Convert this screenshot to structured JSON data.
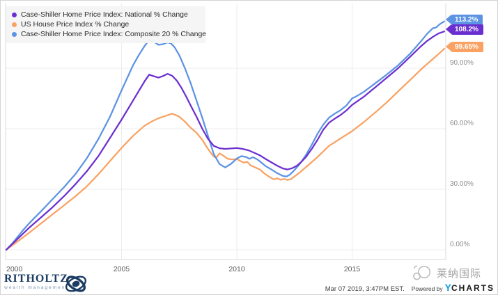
{
  "chart_data": {
    "type": "line",
    "title": "",
    "legend_position": "top-left",
    "grid": true,
    "x_axis": {
      "ticks": [
        "2000",
        "2005",
        "2010",
        "2015"
      ],
      "tick_values": [
        2000,
        2005,
        2010,
        2015
      ],
      "range": [
        2000,
        2019.1
      ]
    },
    "y_axis": {
      "side": "right",
      "ticks": [
        "0.00%",
        "30.00%",
        "60.00%",
        "90.00%"
      ],
      "tick_values": [
        0,
        30,
        60,
        90
      ],
      "range": [
        -4.8,
        122
      ]
    },
    "series": [
      {
        "name": "national",
        "label": "Case-Shiller Home Price Index: National % Change",
        "color": "#6B2FD0",
        "end_label": "108.2%",
        "points": [
          [
            2000,
            0
          ],
          [
            2000.5,
            5.5
          ],
          [
            2001,
            11
          ],
          [
            2001.5,
            16
          ],
          [
            2002,
            21
          ],
          [
            2002.5,
            26.5
          ],
          [
            2003,
            32.5
          ],
          [
            2003.5,
            39
          ],
          [
            2004,
            46.5
          ],
          [
            2004.5,
            55.5
          ],
          [
            2005,
            64.5
          ],
          [
            2005.5,
            74
          ],
          [
            2006,
            83.5
          ],
          [
            2006.2,
            86.8
          ],
          [
            2006.4,
            86
          ],
          [
            2006.6,
            85.3
          ],
          [
            2006.8,
            86.1
          ],
          [
            2007,
            87.2
          ],
          [
            2007.2,
            86.2
          ],
          [
            2007.4,
            83.8
          ],
          [
            2007.6,
            80.2
          ],
          [
            2007.8,
            76
          ],
          [
            2008,
            71.5
          ],
          [
            2008.25,
            66
          ],
          [
            2008.5,
            60
          ],
          [
            2008.75,
            55
          ],
          [
            2009,
            51.5
          ],
          [
            2009.25,
            50.3
          ],
          [
            2009.5,
            50
          ],
          [
            2009.75,
            50.2
          ],
          [
            2010,
            50.4
          ],
          [
            2010.25,
            50
          ],
          [
            2010.5,
            49.3
          ],
          [
            2010.75,
            48.1
          ],
          [
            2011,
            46.8
          ],
          [
            2011.25,
            45
          ],
          [
            2011.5,
            43.3
          ],
          [
            2011.75,
            41.7
          ],
          [
            2012,
            40.3
          ],
          [
            2012.2,
            39.8
          ],
          [
            2012.4,
            40.4
          ],
          [
            2012.6,
            41.6
          ],
          [
            2012.8,
            43.6
          ],
          [
            2013,
            46
          ],
          [
            2013.25,
            50
          ],
          [
            2013.5,
            54.5
          ],
          [
            2013.75,
            59.5
          ],
          [
            2014,
            63
          ],
          [
            2014.25,
            65
          ],
          [
            2014.5,
            66.8
          ],
          [
            2014.75,
            69
          ],
          [
            2015,
            71.8
          ],
          [
            2015.5,
            75.8
          ],
          [
            2016,
            80.5
          ],
          [
            2016.5,
            85.2
          ],
          [
            2017,
            90
          ],
          [
            2017.5,
            95.5
          ],
          [
            2018,
            101
          ],
          [
            2018.25,
            103.5
          ],
          [
            2018.5,
            105.5
          ],
          [
            2018.75,
            107.2
          ],
          [
            2019,
            108.2
          ]
        ]
      },
      {
        "name": "us-house-price-index",
        "label": "US House Price Index % Change",
        "color": "#F9A263",
        "end_label": "99.65%",
        "points": [
          [
            2000,
            0
          ],
          [
            2000.5,
            4.2
          ],
          [
            2001,
            8.5
          ],
          [
            2001.5,
            13
          ],
          [
            2002,
            17.5
          ],
          [
            2002.5,
            22
          ],
          [
            2003,
            26.5
          ],
          [
            2003.5,
            31.5
          ],
          [
            2004,
            37.5
          ],
          [
            2004.5,
            44
          ],
          [
            2005,
            50.5
          ],
          [
            2005.5,
            56.5
          ],
          [
            2006,
            61.5
          ],
          [
            2006.3,
            63.5
          ],
          [
            2006.6,
            65.2
          ],
          [
            2006.9,
            66.3
          ],
          [
            2007.2,
            67.5
          ],
          [
            2007.5,
            66
          ],
          [
            2007.75,
            63.5
          ],
          [
            2008,
            60.5
          ],
          [
            2008.25,
            58
          ],
          [
            2008.5,
            54.5
          ],
          [
            2008.75,
            50
          ],
          [
            2008.9,
            47.6
          ],
          [
            2009,
            46.2
          ],
          [
            2009.1,
            45.6
          ],
          [
            2009.25,
            47.8
          ],
          [
            2009.4,
            46.8
          ],
          [
            2009.6,
            45.1
          ],
          [
            2009.8,
            44.8
          ],
          [
            2010,
            45
          ],
          [
            2010.15,
            44
          ],
          [
            2010.3,
            43.2
          ],
          [
            2010.45,
            43.6
          ],
          [
            2010.6,
            41.8
          ],
          [
            2010.8,
            40.8
          ],
          [
            2011,
            39.8
          ],
          [
            2011.2,
            37.8
          ],
          [
            2011.4,
            36.2
          ],
          [
            2011.6,
            34.9
          ],
          [
            2011.75,
            35.4
          ],
          [
            2011.9,
            34.7
          ],
          [
            2012.05,
            35.1
          ],
          [
            2012.2,
            34.6
          ],
          [
            2012.35,
            35
          ],
          [
            2012.5,
            36.3
          ],
          [
            2012.75,
            38.5
          ],
          [
            2013,
            41
          ],
          [
            2013.5,
            46
          ],
          [
            2014,
            51.5
          ],
          [
            2014.5,
            55.2
          ],
          [
            2015,
            58.8
          ],
          [
            2015.5,
            63.2
          ],
          [
            2016,
            68
          ],
          [
            2016.5,
            73
          ],
          [
            2017,
            78.5
          ],
          [
            2017.5,
            84
          ],
          [
            2018,
            89.5
          ],
          [
            2018.5,
            94.5
          ],
          [
            2018.75,
            97
          ],
          [
            2019,
            99.65
          ]
        ]
      },
      {
        "name": "composite-20",
        "label": "Case-Shiller Home Price Index: Composite 20 % Change",
        "color": "#5C93E3",
        "end_label": "113.2%",
        "points": [
          [
            2000,
            0
          ],
          [
            2000.25,
            3
          ],
          [
            2000.5,
            6.5
          ],
          [
            2000.75,
            10
          ],
          [
            2001,
            13.2
          ],
          [
            2001.5,
            19
          ],
          [
            2002,
            25
          ],
          [
            2002.5,
            31
          ],
          [
            2003,
            37.5
          ],
          [
            2003.5,
            45.5
          ],
          [
            2004,
            55
          ],
          [
            2004.5,
            66
          ],
          [
            2005,
            79
          ],
          [
            2005.5,
            91.5
          ],
          [
            2005.75,
            96.5
          ],
          [
            2006,
            101
          ],
          [
            2006.2,
            104
          ],
          [
            2006.4,
            103.2
          ],
          [
            2006.6,
            101.6
          ],
          [
            2006.8,
            101.9
          ],
          [
            2007,
            102.8
          ],
          [
            2007.15,
            102.2
          ],
          [
            2007.3,
            100.4
          ],
          [
            2007.5,
            96.5
          ],
          [
            2007.75,
            90
          ],
          [
            2008,
            82.5
          ],
          [
            2008.25,
            74
          ],
          [
            2008.5,
            65.5
          ],
          [
            2008.75,
            56.5
          ],
          [
            2009,
            47.5
          ],
          [
            2009.25,
            42.5
          ],
          [
            2009.5,
            40.8
          ],
          [
            2009.75,
            42.6
          ],
          [
            2010,
            45.2
          ],
          [
            2010.2,
            46.4
          ],
          [
            2010.4,
            46
          ],
          [
            2010.55,
            45.1
          ],
          [
            2010.7,
            45.9
          ],
          [
            2010.9,
            44.7
          ],
          [
            2011,
            43.8
          ],
          [
            2011.25,
            41.5
          ],
          [
            2011.5,
            39.8
          ],
          [
            2011.75,
            38
          ],
          [
            2012,
            36.6
          ],
          [
            2012.15,
            36.3
          ],
          [
            2012.3,
            37.2
          ],
          [
            2012.5,
            39.5
          ],
          [
            2012.75,
            42.8
          ],
          [
            2013,
            47
          ],
          [
            2013.25,
            52
          ],
          [
            2013.5,
            57.5
          ],
          [
            2013.75,
            62
          ],
          [
            2014,
            65.5
          ],
          [
            2014.25,
            67.5
          ],
          [
            2014.5,
            69.2
          ],
          [
            2014.75,
            71.5
          ],
          [
            2015,
            75
          ],
          [
            2015.25,
            76.5
          ],
          [
            2015.5,
            78.2
          ],
          [
            2016,
            82.5
          ],
          [
            2016.5,
            86.8
          ],
          [
            2017,
            91.5
          ],
          [
            2017.5,
            97
          ],
          [
            2018,
            103.5
          ],
          [
            2018.25,
            107
          ],
          [
            2018.5,
            109.8
          ],
          [
            2018.65,
            110.2
          ],
          [
            2018.8,
            111.8
          ],
          [
            2019,
            113.2
          ]
        ]
      }
    ]
  },
  "badges": {
    "blue": "113.2%",
    "purple": "108.2%",
    "orange": "99.65%"
  },
  "footer": {
    "timestamp": "Mar 07 2019, 3:47PM EST.",
    "powered_by": "Powered by",
    "ycharts": {
      "y": "Y",
      "rest": "CHARTS"
    },
    "ritholtz": {
      "name": "RITHOLTZ",
      "subtitle": "wealth management"
    }
  },
  "watermark": {
    "text": "莱纳国际"
  },
  "colors": {
    "grid": "#ececec",
    "plot_border": "#d8d8d8",
    "y_tick_text": "#8c8c8c",
    "x_tick_text": "#5a5a5a"
  }
}
